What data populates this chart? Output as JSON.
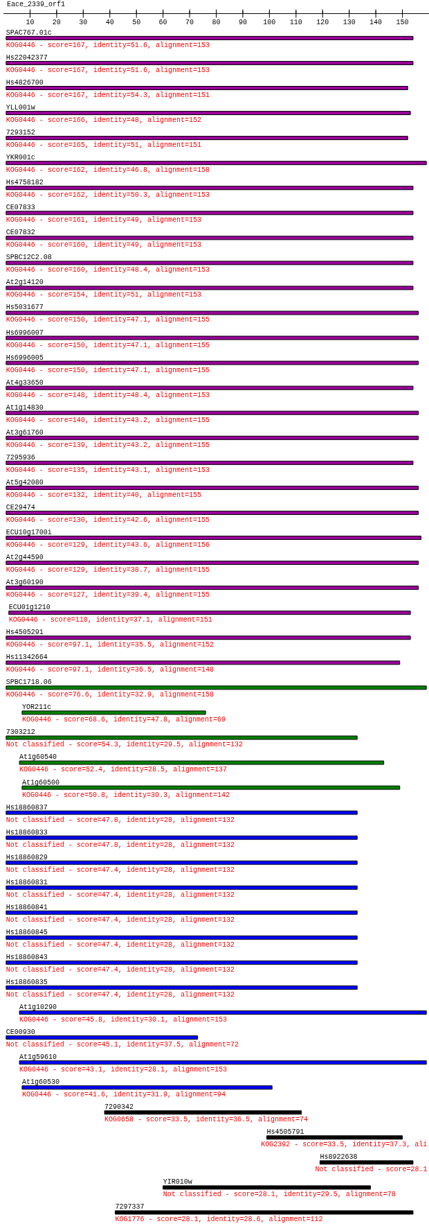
{
  "chart_data": {
    "type": "bar",
    "orientation": "horizontal",
    "title": "Eace_2339_orf1",
    "categories": [
      "SPAC767.01c",
      "Hs22042377",
      "Hs4826700",
      "YLL001w",
      "7293152",
      "YKR001c",
      "Hs4758182",
      "CE07833",
      "CE07832",
      "SPBC12C2.08",
      "At2g14120",
      "Hs5031677",
      "Hs6996007",
      "Hs6996005",
      "At4g33650",
      "At1g14830",
      "At3g61760",
      "7295936",
      "At5g42080",
      "CE29474",
      "ECU10g1700i",
      "At2g44590",
      "At3g60190",
      "ECU01g1210",
      "Hs4505291",
      "Hs11342664",
      "SPBC1718.06",
      "YOR211c",
      "7303212",
      "At1g60540",
      "At1g60500",
      "Hs18860837",
      "Hs18860833",
      "Hs18860829",
      "Hs18860831",
      "Hs18860841",
      "Hs18860845",
      "Hs18860843",
      "Hs18860835",
      "At1g10290",
      "CE00930",
      "At1g59610",
      "At1g60530",
      "7290342",
      "Hs4505791",
      "Hs8922638",
      "YIR010w",
      "7297337"
    ],
    "base": [
      1,
      1,
      1,
      1,
      1,
      1,
      1,
      1,
      1,
      1,
      1,
      1,
      1,
      1,
      1,
      1,
      1,
      1,
      1,
      1,
      1,
      1,
      1,
      2,
      1,
      1,
      1,
      7,
      1,
      6,
      7,
      1,
      1,
      1,
      1,
      1,
      1,
      1,
      1,
      6,
      1,
      6,
      7,
      38,
      99,
      119,
      60,
      42
    ],
    "values": [
      153,
      153,
      151,
      152,
      151,
      158,
      153,
      153,
      153,
      153,
      153,
      155,
      155,
      155,
      153,
      155,
      155,
      153,
      155,
      155,
      156,
      155,
      155,
      151,
      152,
      148,
      158,
      69,
      132,
      137,
      142,
      132,
      132,
      132,
      132,
      132,
      132,
      132,
      132,
      153,
      72,
      153,
      94,
      74,
      51,
      35,
      78,
      112
    ],
    "colors": [
      "#990099",
      "#990099",
      "#990099",
      "#990099",
      "#990099",
      "#990099",
      "#990099",
      "#990099",
      "#990099",
      "#990099",
      "#990099",
      "#990099",
      "#990099",
      "#990099",
      "#990099",
      "#990099",
      "#990099",
      "#990099",
      "#990099",
      "#990099",
      "#990099",
      "#990099",
      "#990099",
      "#990099",
      "#990099",
      "#990099",
      "#008000",
      "#008000",
      "#008000",
      "#008000",
      "#008000",
      "#0000ff",
      "#0000ff",
      "#0000ff",
      "#0000ff",
      "#0000ff",
      "#0000ff",
      "#0000ff",
      "#0000ff",
      "#0000ff",
      "#0000ff",
      "#0000ff",
      "#0000ff",
      "#000000",
      "#000000",
      "#000000",
      "#000000",
      "#000000"
    ],
    "annotations": [
      "KOG0446 - score=167, identity=51.6, alignment=153",
      "KOG0446 - score=167, identity=51.6, alignment=153",
      "KOG0446 - score=167, identity=54.3, alignment=151",
      "KOG0446 - score=166, identity=48, alignment=152",
      "KOG0446 - score=165, identity=51, alignment=151",
      "KOG0446 - score=162, identity=46.8, alignment=158",
      "KOG0446 - score=162, identity=50.3, alignment=153",
      "KOG0446 - score=161, identity=49, alignment=153",
      "KOG0446 - score=160, identity=49, alignment=153",
      "KOG0446 - score=160, identity=48.4, alignment=153",
      "KOG0446 - score=154, identity=51, alignment=153",
      "KOG0446 - score=150, identity=47.1, alignment=155",
      "KOG0446 - score=150, identity=47.1, alignment=155",
      "KOG0446 - score=150, identity=47.1, alignment=155",
      "KOG0446 - score=148, identity=48.4, alignment=153",
      "KOG0446 - score=140, identity=43.2, alignment=155",
      "KOG0446 - score=139, identity=43.2, alignment=155",
      "KOG0446 - score=135, identity=43.1, alignment=153",
      "KOG0446 - score=132, identity=40, alignment=155",
      "KOG0446 - score=130, identity=42.6, alignment=155",
      "KOG0446 - score=129, identity=43.6, alignment=156",
      "KOG0446 - score=129, identity=38.7, alignment=155",
      "KOG0446 - score=127, identity=39.4, alignment=155",
      "KOG0446 - score=110, identity=37.1, alignment=151",
      "KOG0446 - score=97.1, identity=35.5, alignment=152",
      "KOG0446 - score=97.1, identity=36.5, alignment=148",
      "KOG0446 - score=76.6, identity=32.9, alignment=158",
      "KOG0446 - score=68.6, identity=47.8, alignment=69",
      "Not classified - score=54.3, identity=29.5, alignment=132",
      "KOG0446 - score=52.4, identity=28.5, alignment=137",
      "KOG0446 - score=50.8, identity=30.3, alignment=142",
      "Not classified - score=47.8, identity=28, alignment=132",
      "Not classified - score=47.8, identity=28, alignment=132",
      "Not classified - score=47.4, identity=28, alignment=132",
      "Not classified - score=47.4, identity=28, alignment=132",
      "Not classified - score=47.4, identity=28, alignment=132",
      "Not classified - score=47.4, identity=28, alignment=132",
      "Not classified - score=47.4, identity=28, alignment=132",
      "Not classified - score=47.4, identity=28, alignment=132",
      "KOG0446 - score=45.8, identity=30.1, alignment=153",
      "Not classified - score=45.1, identity=37.5, alignment=72",
      "KOG0446 - score=43.1, identity=28.1, alignment=153",
      "KOG0446 - score=41.6, identity=31.9, alignment=94",
      "KOG0658 - score=33.5, identity=36.5, alignment=74",
      "KOG2392 - score=33.5, identity=37.3, ali",
      "Not classified - score=28.1",
      "Not classified - score=28.1, identity=29.5, alignment=78",
      "KOG1776 - score=28.1, identity=28.6, alignment=112"
    ],
    "xlim": [
      0,
      160
    ],
    "xticks": [
      10,
      20,
      30,
      40,
      50,
      60,
      70,
      80,
      90,
      100,
      110,
      120,
      130,
      140,
      150
    ]
  }
}
